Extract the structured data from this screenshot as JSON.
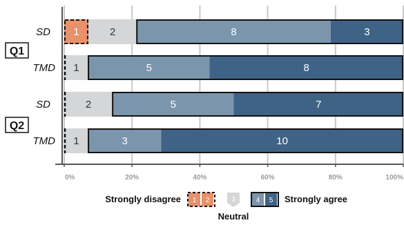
{
  "chart_data": {
    "type": "bar",
    "orientation": "horizontal-stacked-100",
    "categories": [
      "SD",
      "TMD",
      "SD",
      "TMD"
    ],
    "groups": [
      "Q1",
      "Q2"
    ],
    "row_group": [
      "Q1",
      "Q1",
      "Q2",
      "Q2"
    ],
    "segment_order": [
      "1",
      "2",
      "3",
      "4",
      "5"
    ],
    "series": [
      {
        "name": "1",
        "values": [
          1,
          0,
          0,
          0
        ]
      },
      {
        "name": "2",
        "values": [
          2,
          1,
          2,
          1
        ]
      },
      {
        "name": "3",
        "values": [
          0,
          0,
          0,
          0
        ]
      },
      {
        "name": "4",
        "values": [
          8,
          5,
          5,
          3
        ]
      },
      {
        "name": "5",
        "values": [
          3,
          8,
          7,
          10
        ]
      }
    ],
    "xlim": [
      0,
      100
    ],
    "xticks": [
      "0%",
      "20%",
      "40%",
      "60%",
      "80%",
      "100%"
    ],
    "grid": true,
    "colors": {
      "1": "#e8916a",
      "2": "#d4d6d8",
      "4": "#7b95ad",
      "5": "#3f6386",
      "outline": "#111111",
      "grid": "#c8c8c8"
    },
    "legend": {
      "left_label": "Strongly disagree",
      "right_label": "Strongly agree",
      "neutral_label": "Neutral",
      "disagree_items": [
        "1",
        "2"
      ],
      "neutral_item": "3",
      "agree_items": [
        "4",
        "5"
      ]
    }
  }
}
